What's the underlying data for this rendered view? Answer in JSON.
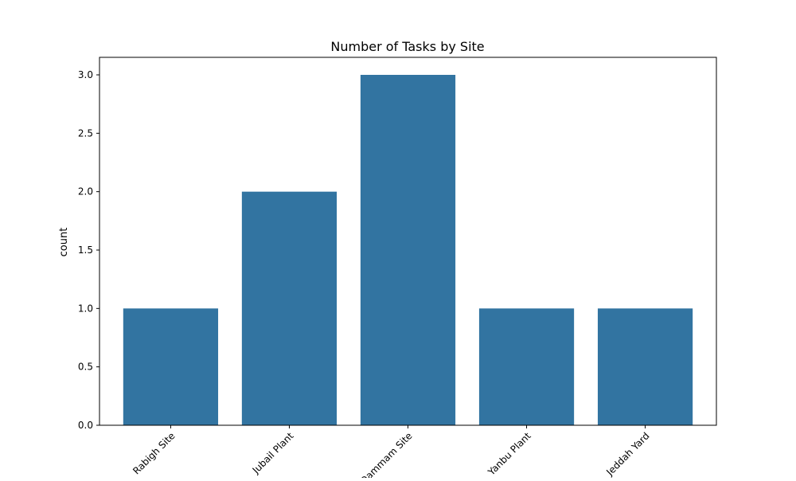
{
  "chart_data": {
    "type": "bar",
    "title": "Number of Tasks by Site",
    "xlabel": "",
    "ylabel": "count",
    "categories": [
      "Rabigh Site",
      "Jubail Plant",
      "Dammam Site",
      "Yanbu Plant",
      "Jeddah Yard"
    ],
    "values": [
      1,
      2,
      3,
      1,
      1
    ],
    "ylim": [
      0,
      3.15
    ],
    "yticks": [
      0.0,
      0.5,
      1.0,
      1.5,
      2.0,
      2.5,
      3.0
    ],
    "ytick_labels": [
      "0.0",
      "0.5",
      "1.0",
      "1.5",
      "2.0",
      "2.5",
      "3.0"
    ],
    "xtick_rotation_deg": 45,
    "grid": false,
    "legend": "none",
    "bar_color": "#3274a1"
  }
}
